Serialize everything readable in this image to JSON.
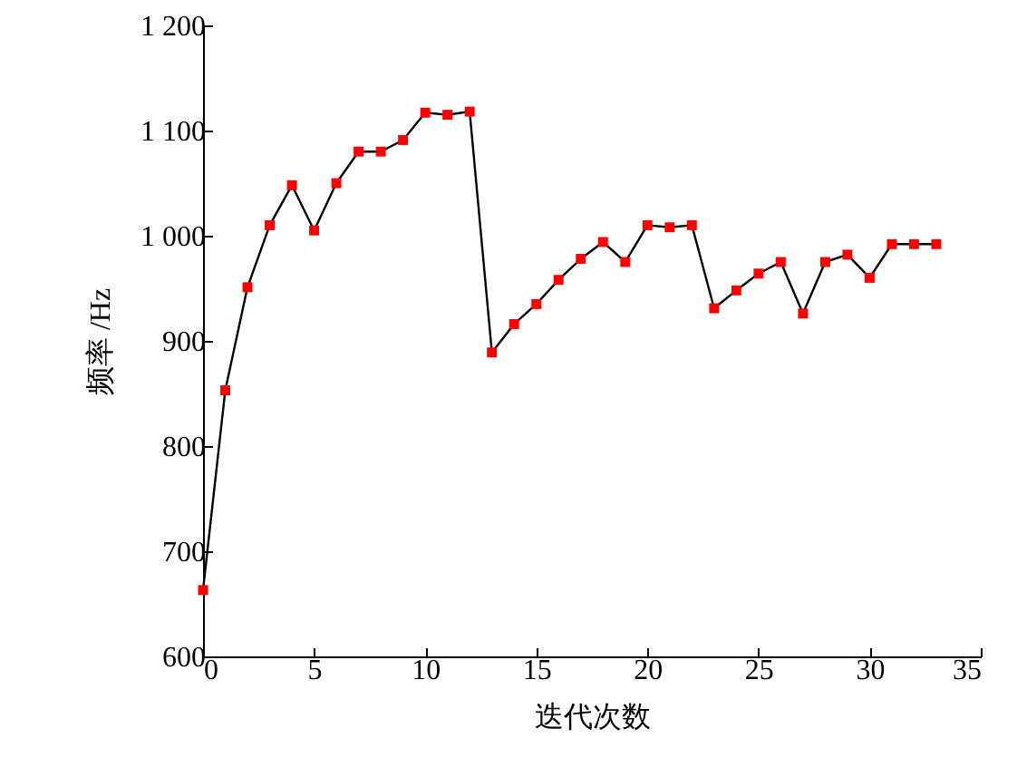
{
  "chart_data": {
    "type": "line",
    "xlabel": "迭代次数",
    "ylabel": "频率 /Hz",
    "x": [
      0,
      1,
      2,
      3,
      4,
      5,
      6,
      7,
      8,
      9,
      10,
      11,
      12,
      13,
      14,
      15,
      16,
      17,
      18,
      19,
      20,
      21,
      22,
      23,
      24,
      25,
      26,
      27,
      28,
      29,
      30,
      31,
      32,
      33
    ],
    "series": [
      {
        "color": "#ff0000",
        "values": [
          663,
          853,
          951,
          1010,
          1048,
          1005,
          1050,
          1080,
          1080,
          1091,
          1117,
          1115,
          1118,
          889,
          916,
          935,
          958,
          978,
          994,
          975,
          1010,
          1008,
          1010,
          931,
          948,
          964,
          975,
          926,
          975,
          982,
          960,
          992,
          992,
          992
        ]
      }
    ],
    "xlim": [
      0,
      35
    ],
    "xticks": [
      0,
      5,
      10,
      15,
      20,
      25,
      30,
      35
    ],
    "ylim": [
      600,
      1200
    ],
    "yticks": [
      600,
      700,
      800,
      900,
      {
        "value": 1000,
        "label": "1 000"
      },
      {
        "value": 1100,
        "label": "1 100"
      },
      {
        "value": 1200,
        "label": "1 200"
      }
    ],
    "marker": "square",
    "line_style": "solid",
    "grid": false
  }
}
